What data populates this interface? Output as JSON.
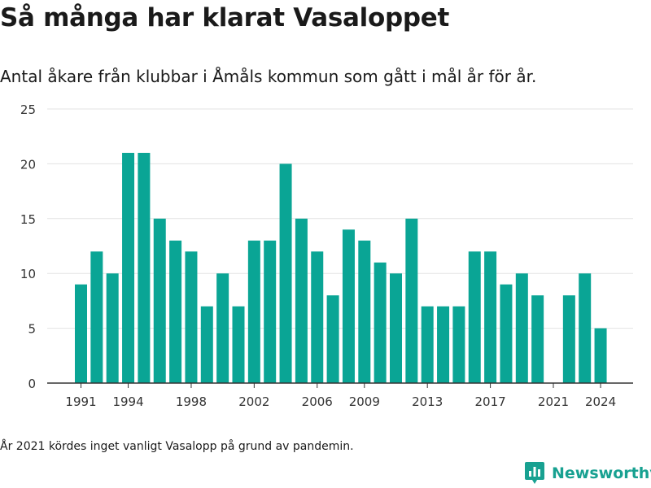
{
  "header": {
    "title": "Så många har klarat Vasaloppet",
    "subtitle": "Antal åkare från klubbar i Åmåls kommun som gått i mål år för år."
  },
  "footnote": "År 2021 kördes inget vanligt Vasalopp på grund av pandemin.",
  "brand": {
    "name": "Newsworthy",
    "icon": "newsworthy-logo-icon",
    "color": "#18a191"
  },
  "colors": {
    "bar": "#0aa595",
    "grid": "#e3e3e3",
    "axis": "#333333",
    "tick_text": "#333333"
  },
  "chart_data": {
    "type": "bar",
    "title": "Så många har klarat Vasaloppet",
    "subtitle": "Antal åkare från klubbar i Åmåls kommun som gått i mål år för år.",
    "xlabel": "",
    "ylabel": "",
    "x": [
      1991,
      1992,
      1993,
      1994,
      1995,
      1996,
      1997,
      1998,
      1999,
      2000,
      2001,
      2002,
      2003,
      2004,
      2005,
      2006,
      2007,
      2008,
      2009,
      2010,
      2011,
      2012,
      2013,
      2014,
      2015,
      2016,
      2017,
      2018,
      2019,
      2020,
      2021,
      2022,
      2023,
      2024
    ],
    "values": [
      9,
      12,
      10,
      21,
      21,
      15,
      13,
      12,
      7,
      10,
      7,
      13,
      13,
      20,
      15,
      12,
      8,
      14,
      13,
      11,
      10,
      15,
      7,
      7,
      7,
      12,
      12,
      9,
      10,
      8,
      null,
      8,
      10,
      5
    ],
    "x_ticks": [
      1991,
      1994,
      1998,
      2002,
      2006,
      2009,
      2013,
      2017,
      2021,
      2024
    ],
    "y_ticks": [
      0,
      5,
      10,
      15,
      20,
      25
    ],
    "ylim": [
      0,
      25
    ],
    "grid": true,
    "legend": "none"
  }
}
